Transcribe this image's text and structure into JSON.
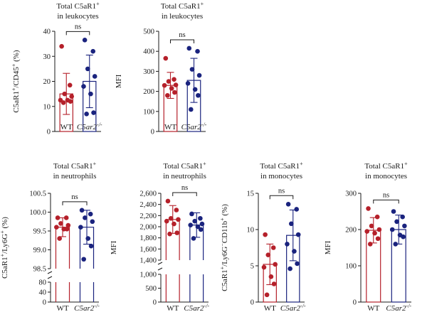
{
  "figure": {
    "colors": {
      "wt": "#b5202a",
      "ko": "#1a237e",
      "axis": "#1a1a1a"
    }
  },
  "chart_data": [
    {
      "type": "bar",
      "title_lines": [
        {
          "text": "Total C5aR1",
          "sup": "+"
        },
        {
          "text": "in leukocytes"
        }
      ],
      "ylabel": [
        {
          "t": "C5aR1"
        },
        {
          "t": "+",
          "sup": true
        },
        {
          "t": "/CD45"
        },
        {
          "t": "+",
          "sup": true
        },
        {
          "t": " (%)"
        }
      ],
      "categories": [
        {
          "name": "WT",
          "italic": false
        },
        {
          "name": "C5ar2",
          "italic": true,
          "sup": "-/-"
        }
      ],
      "ylim": [
        0,
        40
      ],
      "ticks": [
        0,
        10,
        20,
        30,
        40
      ],
      "tick_labels": [
        "0",
        "10",
        "20",
        "30",
        "40"
      ],
      "series": [
        {
          "name": "WT",
          "mean": 15,
          "sd": 8.2,
          "points": [
            34,
            18.5,
            15,
            14,
            12.5,
            12.5,
            12,
            11.5
          ]
        },
        {
          "name": "C5ar2-/-",
          "mean": 20,
          "sd": 10.5,
          "points": [
            36.5,
            32,
            25,
            22,
            18,
            15,
            7.5,
            7
          ]
        }
      ],
      "significance": "ns"
    },
    {
      "type": "bar",
      "title_lines": [
        {
          "text": "Total C5aR1",
          "sup": "+"
        },
        {
          "text": "in leukocytes"
        }
      ],
      "ylabel": [
        {
          "t": "MFI"
        }
      ],
      "categories": [
        {
          "name": "WT",
          "italic": false
        },
        {
          "name": "C5ar2",
          "italic": true,
          "sup": "-/-"
        }
      ],
      "ylim": [
        0,
        500
      ],
      "ticks": [
        0,
        100,
        200,
        300,
        400,
        500
      ],
      "tick_labels": [
        "0",
        "100",
        "200",
        "300",
        "400",
        "500"
      ],
      "series": [
        {
          "name": "WT",
          "mean": 230,
          "sd": 65,
          "points": [
            365,
            260,
            250,
            232,
            230,
            215,
            195,
            180
          ]
        },
        {
          "name": "C5ar2-/-",
          "mean": 255,
          "sd": 110,
          "points": [
            415,
            400,
            310,
            280,
            240,
            210,
            180,
            110
          ]
        }
      ],
      "significance": "ns"
    },
    {
      "type": "bar",
      "title_lines": [
        {
          "text": "Total C5aR1",
          "sup": "+"
        },
        {
          "text": "in neutrophils"
        }
      ],
      "ylabel": [
        {
          "t": "C5aR1"
        },
        {
          "t": "+",
          "sup": true
        },
        {
          "t": "/Ly6G"
        },
        {
          "t": "+",
          "sup": true
        },
        {
          "t": " (%)"
        }
      ],
      "categories": [
        {
          "name": "WT",
          "italic": false
        },
        {
          "name": "C5ar2",
          "italic": true,
          "sup": "-/-"
        }
      ],
      "broken": true,
      "ylim_top": [
        98.5,
        100.5
      ],
      "ylim_bottom": [
        0,
        80
      ],
      "ticks_top": [
        98.5,
        99.0,
        99.5,
        100.0,
        100.5
      ],
      "tick_labels_top": [
        "98.5",
        "99.0",
        "99.5",
        "100.0",
        "100.5"
      ],
      "ticks_bottom": [
        0,
        40,
        80
      ],
      "tick_labels_bottom": [
        "0",
        "40",
        "80"
      ],
      "series": [
        {
          "name": "WT",
          "mean": 99.6,
          "sd": 0.25,
          "points": [
            99.85,
            99.85,
            99.7,
            99.65,
            99.6,
            99.55,
            99.55,
            99.3
          ]
        },
        {
          "name": "C5ar2-/-",
          "mean": 99.6,
          "sd": 0.45,
          "points": [
            100.05,
            99.95,
            99.85,
            99.75,
            99.6,
            99.3,
            99.1,
            98.75
          ]
        }
      ],
      "significance": "ns"
    },
    {
      "type": "bar",
      "title_lines": [
        {
          "text": "Total C5aR1",
          "sup": "+"
        },
        {
          "text": "in neutrophils"
        }
      ],
      "ylabel": [
        {
          "t": "MFI"
        }
      ],
      "categories": [
        {
          "name": "WT",
          "italic": false
        },
        {
          "name": "C5ar2",
          "italic": true,
          "sup": "-/-"
        }
      ],
      "broken": true,
      "ylim_top": [
        1400,
        2600
      ],
      "ylim_bottom": [
        0,
        1000
      ],
      "ticks_top": [
        1400,
        1600,
        1800,
        2000,
        2200,
        2400,
        2600
      ],
      "tick_labels_top": [
        "1,400",
        "1,600",
        "1,800",
        "2,000",
        "2,200",
        "2,400",
        "2,600"
      ],
      "ticks_bottom": [
        0,
        500,
        1000
      ],
      "tick_labels_bottom": [
        "0",
        "500",
        "1,000"
      ],
      "series": [
        {
          "name": "WT",
          "mean": 2130,
          "sd": 250,
          "points": [
            2460,
            2300,
            2150,
            2130,
            2100,
            2050,
            1890,
            1870
          ]
        },
        {
          "name": "C5ar2-/-",
          "mean": 2030,
          "sd": 220,
          "points": [
            2230,
            2150,
            2100,
            2050,
            2030,
            2000,
            1950,
            1790
          ]
        }
      ],
      "significance": "ns"
    },
    {
      "type": "bar",
      "title_lines": [
        {
          "text": "Total C5aR1",
          "sup": "+"
        },
        {
          "text": "in monocytes"
        }
      ],
      "ylabel": [
        {
          "t": "C5aR1"
        },
        {
          "t": "+",
          "sup": true
        },
        {
          "t": "/Ly6G"
        },
        {
          "t": "−",
          "sup": true
        },
        {
          "t": "CD11b"
        },
        {
          "t": "+",
          "sup": true
        },
        {
          "t": " (%)"
        }
      ],
      "categories": [
        {
          "name": "WT",
          "italic": false
        },
        {
          "name": "C5ar2",
          "italic": true,
          "sup": "-/-"
        }
      ],
      "ylim": [
        0,
        15
      ],
      "ticks": [
        0,
        5,
        10,
        15
      ],
      "tick_labels": [
        "0",
        "5",
        "10",
        "15"
      ],
      "series": [
        {
          "name": "WT",
          "mean": 5.2,
          "sd": 2.8,
          "points": [
            9.3,
            7.5,
            6.5,
            5.2,
            4.8,
            3.5,
            2.5,
            1.0
          ]
        },
        {
          "name": "C5ar2-/-",
          "mean": 9.2,
          "sd": 3.5,
          "points": [
            13.5,
            12.8,
            10.8,
            9.3,
            8.0,
            7.0,
            5.3,
            4.6
          ]
        }
      ],
      "significance": "ns"
    },
    {
      "type": "bar",
      "title_lines": [
        {
          "text": "Total C5aR1",
          "sup": "+"
        },
        {
          "text": "in monocytes"
        }
      ],
      "ylabel": [
        {
          "t": "MFI"
        }
      ],
      "categories": [
        {
          "name": "WT",
          "italic": false
        },
        {
          "name": "C5ar2",
          "italic": true,
          "sup": "-/-"
        }
      ],
      "ylim": [
        0,
        300
      ],
      "ticks": [
        0,
        100,
        200,
        300
      ],
      "tick_labels": [
        "0",
        "100",
        "200",
        "300"
      ],
      "series": [
        {
          "name": "WT",
          "mean": 198,
          "sd": 35,
          "points": [
            258,
            235,
            210,
            200,
            195,
            190,
            175,
            160
          ]
        },
        {
          "name": "C5ar2-/-",
          "mean": 200,
          "sd": 40,
          "points": [
            250,
            235,
            222,
            210,
            200,
            185,
            180,
            160
          ]
        }
      ],
      "significance": "ns"
    }
  ]
}
